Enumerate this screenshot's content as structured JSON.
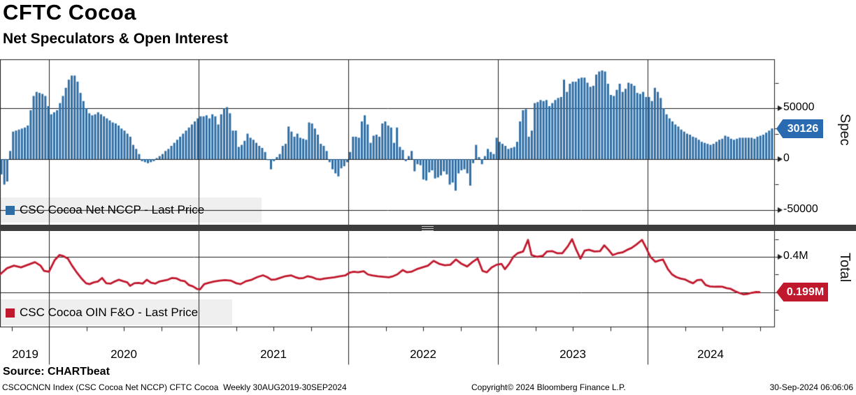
{
  "header": {
    "title": "CFTC Cocoa",
    "subtitle": "Net Speculators & Open Interest"
  },
  "top_panel": {
    "legend_label": "CSC Cocoa Net NCCP - Last Price",
    "axis_label": "Spec",
    "last_price_tag": "30126",
    "ytick_labels": [
      "50000",
      "0",
      "-50000"
    ]
  },
  "bottom_panel": {
    "legend_label": "CSC Cocoa OIN F&O - Last Price",
    "axis_label": "Total",
    "last_price_tag": "0.199M",
    "ytick_labels": [
      "0.4M"
    ]
  },
  "xaxis": {
    "year_labels": [
      "2019",
      "2020",
      "2021",
      "2022",
      "2023",
      "2024"
    ]
  },
  "footer": {
    "source": "Source: CHARTbeat",
    "left_text": "CSCOCNCN Index (CSC Cocoa Net NCCP) CFTC Cocoa  Weekly 30AUG2019-30SEP2024",
    "copyright": "Copyright© 2024 Bloomberg Finance L.P.",
    "datetime": "30-Sep-2024 06:06:06"
  },
  "colors": {
    "bar": "#2e6da4",
    "line": "#c0182d",
    "blue_tag": "#2a6ab0",
    "red_tag": "#c0182d",
    "gridline": "#1c1c1c",
    "separator": "#3d3d3d",
    "legend_bg": "#efefef"
  },
  "chart_data": [
    {
      "type": "bar",
      "name": "CSC Cocoa Net NCCP - Last Price",
      "frequency": "weekly",
      "period": "30AUG2019-30SEP2024",
      "ylim": [
        -64000,
        98000
      ],
      "yticks_major": [
        50000,
        0,
        -50000
      ],
      "yticks_minor": [
        75000,
        25000,
        -25000
      ],
      "grid": true,
      "legend_position": "bottom-left-inside",
      "last_value": 30126,
      "values": [
        -15000,
        -25000,
        -22000,
        8000,
        27000,
        28000,
        29000,
        30000,
        31000,
        33000,
        48000,
        62000,
        66000,
        65000,
        64000,
        62000,
        52000,
        44000,
        46000,
        48000,
        55000,
        62000,
        70000,
        78000,
        82000,
        82000,
        76000,
        65000,
        57000,
        50000,
        45000,
        43000,
        44000,
        46000,
        44000,
        42000,
        40000,
        38000,
        36000,
        35000,
        33000,
        30000,
        28000,
        25000,
        22000,
        14000,
        10000,
        5000,
        -2000,
        -3000,
        -4000,
        -3000,
        -2000,
        1000,
        3000,
        5000,
        8000,
        10000,
        13000,
        16000,
        19000,
        22000,
        25000,
        28000,
        31000,
        34000,
        37000,
        40000,
        42000,
        42000,
        43000,
        40000,
        44000,
        42000,
        34000,
        44000,
        50000,
        51000,
        45000,
        28000,
        28000,
        12000,
        14000,
        18000,
        25000,
        21000,
        19000,
        16000,
        13000,
        11000,
        7000,
        -1000,
        -10000,
        -2000,
        2000,
        5000,
        13000,
        15000,
        32000,
        27000,
        22000,
        25000,
        21000,
        20000,
        19000,
        36000,
        35000,
        30000,
        24000,
        15000,
        13000,
        8000,
        -3000,
        -10000,
        -14000,
        -17000,
        -9000,
        -7000,
        -3000,
        7000,
        22000,
        22000,
        21000,
        37000,
        43000,
        34000,
        16000,
        23000,
        24000,
        22000,
        35000,
        37000,
        33000,
        31000,
        16000,
        31000,
        12000,
        9000,
        -2000,
        3000,
        8000,
        -12000,
        -5000,
        -6000,
        -20000,
        -21000,
        -13000,
        -11000,
        -19000,
        -18000,
        -16000,
        -12000,
        -15000,
        -25000,
        -23000,
        -31000,
        -14000,
        -11000,
        -10000,
        -14000,
        -26000,
        -4000,
        14000,
        2000,
        -5000,
        3000,
        10000,
        7000,
        5000,
        21000,
        17000,
        15000,
        13000,
        10000,
        11000,
        12000,
        17000,
        37000,
        48000,
        49000,
        22000,
        28000,
        55000,
        56000,
        58000,
        57000,
        58000,
        52000,
        55000,
        58000,
        60000,
        61000,
        78000,
        66000,
        74000,
        76000,
        76000,
        79000,
        80000,
        80000,
        75000,
        71000,
        72000,
        83000,
        86000,
        87000,
        86000,
        74000,
        63000,
        62000,
        68000,
        74000,
        66000,
        69000,
        75000,
        74000,
        72000,
        65000,
        64000,
        66000,
        61000,
        61000,
        57000,
        70000,
        66000,
        60000,
        50000,
        44000,
        40000,
        37000,
        34000,
        32000,
        29000,
        27000,
        25000,
        24000,
        22000,
        21000,
        19000,
        17000,
        16000,
        15000,
        14000,
        15000,
        17000,
        19000,
        20000,
        23000,
        22000,
        20000,
        19000,
        20000,
        21000,
        21000,
        21000,
        21000,
        21000,
        20000,
        22000,
        23000,
        24000,
        26000,
        28000,
        30126
      ]
    },
    {
      "type": "line",
      "name": "CSC Cocoa OIN F&O - Last Price",
      "unit": "M",
      "ylim": [
        0.0,
        0.54
      ],
      "yticks_major": [
        0.4,
        0.2
      ],
      "yticks_minor": [
        0.5,
        0.3,
        0.1
      ],
      "grid": true,
      "legend_position": "bottom-left-inside",
      "last_value": 0.199,
      "points": [
        [
          0,
          0.3
        ],
        [
          10,
          0.335
        ],
        [
          20,
          0.35
        ],
        [
          30,
          0.34
        ],
        [
          40,
          0.355
        ],
        [
          50,
          0.37
        ],
        [
          58,
          0.35
        ],
        [
          63,
          0.32
        ],
        [
          70,
          0.315
        ],
        [
          78,
          0.38
        ],
        [
          85,
          0.41
        ],
        [
          90,
          0.405
        ],
        [
          97,
          0.39
        ],
        [
          103,
          0.35
        ],
        [
          110,
          0.31
        ],
        [
          117,
          0.275
        ],
        [
          123,
          0.25
        ],
        [
          128,
          0.245
        ],
        [
          134,
          0.255
        ],
        [
          140,
          0.26
        ],
        [
          146,
          0.28
        ],
        [
          152,
          0.25
        ],
        [
          158,
          0.248
        ],
        [
          164,
          0.26
        ],
        [
          170,
          0.27
        ],
        [
          176,
          0.262
        ],
        [
          182,
          0.255
        ],
        [
          186,
          0.235
        ],
        [
          192,
          0.25
        ],
        [
          198,
          0.252
        ],
        [
          204,
          0.248
        ],
        [
          210,
          0.27
        ],
        [
          216,
          0.253
        ],
        [
          222,
          0.248
        ],
        [
          228,
          0.26
        ],
        [
          234,
          0.265
        ],
        [
          240,
          0.27
        ],
        [
          246,
          0.28
        ],
        [
          252,
          0.278
        ],
        [
          258,
          0.266
        ],
        [
          264,
          0.262
        ],
        [
          270,
          0.24
        ],
        [
          276,
          0.232
        ],
        [
          282,
          0.217
        ],
        [
          286,
          0.215
        ],
        [
          292,
          0.245
        ],
        [
          298,
          0.252
        ],
        [
          306,
          0.26
        ],
        [
          314,
          0.265
        ],
        [
          322,
          0.268
        ],
        [
          330,
          0.265
        ],
        [
          338,
          0.25
        ],
        [
          344,
          0.245
        ],
        [
          352,
          0.262
        ],
        [
          360,
          0.27
        ],
        [
          368,
          0.285
        ],
        [
          376,
          0.295
        ],
        [
          382,
          0.285
        ],
        [
          388,
          0.27
        ],
        [
          394,
          0.272
        ],
        [
          400,
          0.28
        ],
        [
          408,
          0.29
        ],
        [
          416,
          0.295
        ],
        [
          422,
          0.285
        ],
        [
          428,
          0.278
        ],
        [
          434,
          0.28
        ],
        [
          440,
          0.29
        ],
        [
          446,
          0.285
        ],
        [
          452,
          0.275
        ],
        [
          458,
          0.272
        ],
        [
          464,
          0.277
        ],
        [
          470,
          0.28
        ],
        [
          478,
          0.284
        ],
        [
          486,
          0.29
        ],
        [
          494,
          0.295
        ],
        [
          500,
          0.31
        ],
        [
          506,
          0.315
        ],
        [
          512,
          0.312
        ],
        [
          520,
          0.318
        ],
        [
          526,
          0.3
        ],
        [
          532,
          0.295
        ],
        [
          540,
          0.29
        ],
        [
          548,
          0.287
        ],
        [
          556,
          0.284
        ],
        [
          562,
          0.29
        ],
        [
          568,
          0.3
        ],
        [
          576,
          0.325
        ],
        [
          582,
          0.312
        ],
        [
          588,
          0.315
        ],
        [
          596,
          0.33
        ],
        [
          604,
          0.34
        ],
        [
          612,
          0.35
        ],
        [
          620,
          0.377
        ],
        [
          628,
          0.36
        ],
        [
          636,
          0.352
        ],
        [
          644,
          0.355
        ],
        [
          652,
          0.385
        ],
        [
          660,
          0.36
        ],
        [
          668,
          0.345
        ],
        [
          676,
          0.372
        ],
        [
          683,
          0.39
        ],
        [
          690,
          0.32
        ],
        [
          696,
          0.312
        ],
        [
          703,
          0.34
        ],
        [
          710,
          0.355
        ],
        [
          717,
          0.36
        ],
        [
          722,
          0.33
        ],
        [
          728,
          0.36
        ],
        [
          734,
          0.4
        ],
        [
          740,
          0.42
        ],
        [
          748,
          0.43
        ],
        [
          755,
          0.496
        ],
        [
          760,
          0.41
        ],
        [
          768,
          0.4
        ],
        [
          776,
          0.405
        ],
        [
          782,
          0.43
        ],
        [
          790,
          0.432
        ],
        [
          797,
          0.42
        ],
        [
          804,
          0.42
        ],
        [
          812,
          0.46
        ],
        [
          818,
          0.5
        ],
        [
          824,
          0.44
        ],
        [
          830,
          0.39
        ],
        [
          836,
          0.435
        ],
        [
          842,
          0.44
        ],
        [
          850,
          0.43
        ],
        [
          858,
          0.432
        ],
        [
          864,
          0.465
        ],
        [
          870,
          0.44
        ],
        [
          876,
          0.41
        ],
        [
          883,
          0.42
        ],
        [
          890,
          0.425
        ],
        [
          897,
          0.44
        ],
        [
          903,
          0.45
        ],
        [
          910,
          0.47
        ],
        [
          918,
          0.496
        ],
        [
          924,
          0.45
        ],
        [
          930,
          0.4
        ],
        [
          937,
          0.372
        ],
        [
          943,
          0.38
        ],
        [
          948,
          0.385
        ],
        [
          955,
          0.33
        ],
        [
          961,
          0.3
        ],
        [
          967,
          0.285
        ],
        [
          973,
          0.277
        ],
        [
          979,
          0.272
        ],
        [
          985,
          0.26
        ],
        [
          991,
          0.25
        ],
        [
          997,
          0.268
        ],
        [
          1003,
          0.27
        ],
        [
          1009,
          0.24
        ],
        [
          1015,
          0.232
        ],
        [
          1021,
          0.23
        ],
        [
          1027,
          0.231
        ],
        [
          1033,
          0.23
        ],
        [
          1039,
          0.222
        ],
        [
          1045,
          0.218
        ],
        [
          1051,
          0.205
        ],
        [
          1057,
          0.195
        ],
        [
          1063,
          0.187
        ],
        [
          1069,
          0.19
        ],
        [
          1075,
          0.196
        ],
        [
          1081,
          0.2
        ],
        [
          1086,
          0.199
        ]
      ]
    }
  ]
}
